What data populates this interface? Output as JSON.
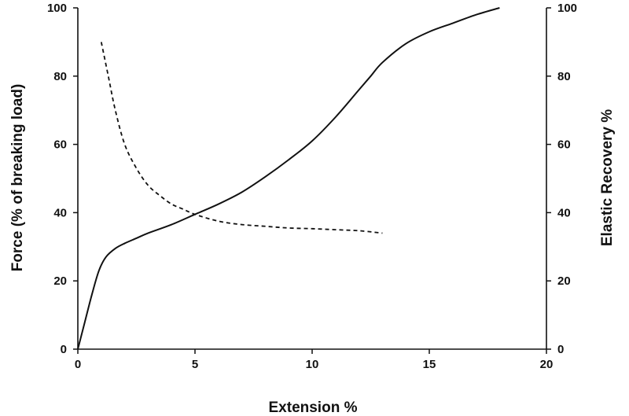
{
  "chart_data": {
    "type": "line",
    "title": "",
    "xlabel": "Extension %",
    "ylabel_left": "Force (% of breaking load)",
    "ylabel_right": "Elastic Recovery %",
    "xlim": [
      0,
      20
    ],
    "ylim_left": [
      0,
      100
    ],
    "ylim_right": [
      0,
      100
    ],
    "x_ticks": [
      "0",
      "5",
      "10",
      "15",
      "20"
    ],
    "y_ticks_left": [
      "0",
      "20",
      "40",
      "60",
      "80",
      "100"
    ],
    "y_ticks_right": [
      "0",
      "20",
      "40",
      "60",
      "80",
      "100"
    ],
    "grid": false,
    "legend": "none",
    "series": [
      {
        "axis": "left",
        "style": "solid",
        "color": "#111111",
        "x": [
          0,
          0.3,
          0.6,
          0.9,
          1.2,
          1.6,
          2,
          2.5,
          3,
          4,
          5,
          6,
          7,
          8,
          9,
          10,
          11,
          12,
          12.5,
          13,
          14,
          15,
          16,
          17,
          18
        ],
        "y": [
          0,
          8,
          16,
          23,
          27,
          29.5,
          31,
          32.5,
          34,
          36.5,
          39.5,
          42.5,
          46,
          50.5,
          55.5,
          61,
          68,
          76,
          80,
          84,
          89.5,
          93,
          95.5,
          98,
          100
        ]
      },
      {
        "axis": "right",
        "style": "dashed",
        "color": "#111111",
        "x": [
          1,
          1.3,
          1.6,
          2,
          2.5,
          3,
          3.5,
          4,
          4.5,
          5,
          6,
          7,
          8,
          9,
          10,
          11,
          12,
          13
        ],
        "y": [
          90,
          80,
          70,
          60,
          53,
          48,
          45,
          42.5,
          41,
          39.5,
          37.5,
          36.5,
          36,
          35.5,
          35.3,
          35,
          34.7,
          34
        ]
      }
    ]
  }
}
